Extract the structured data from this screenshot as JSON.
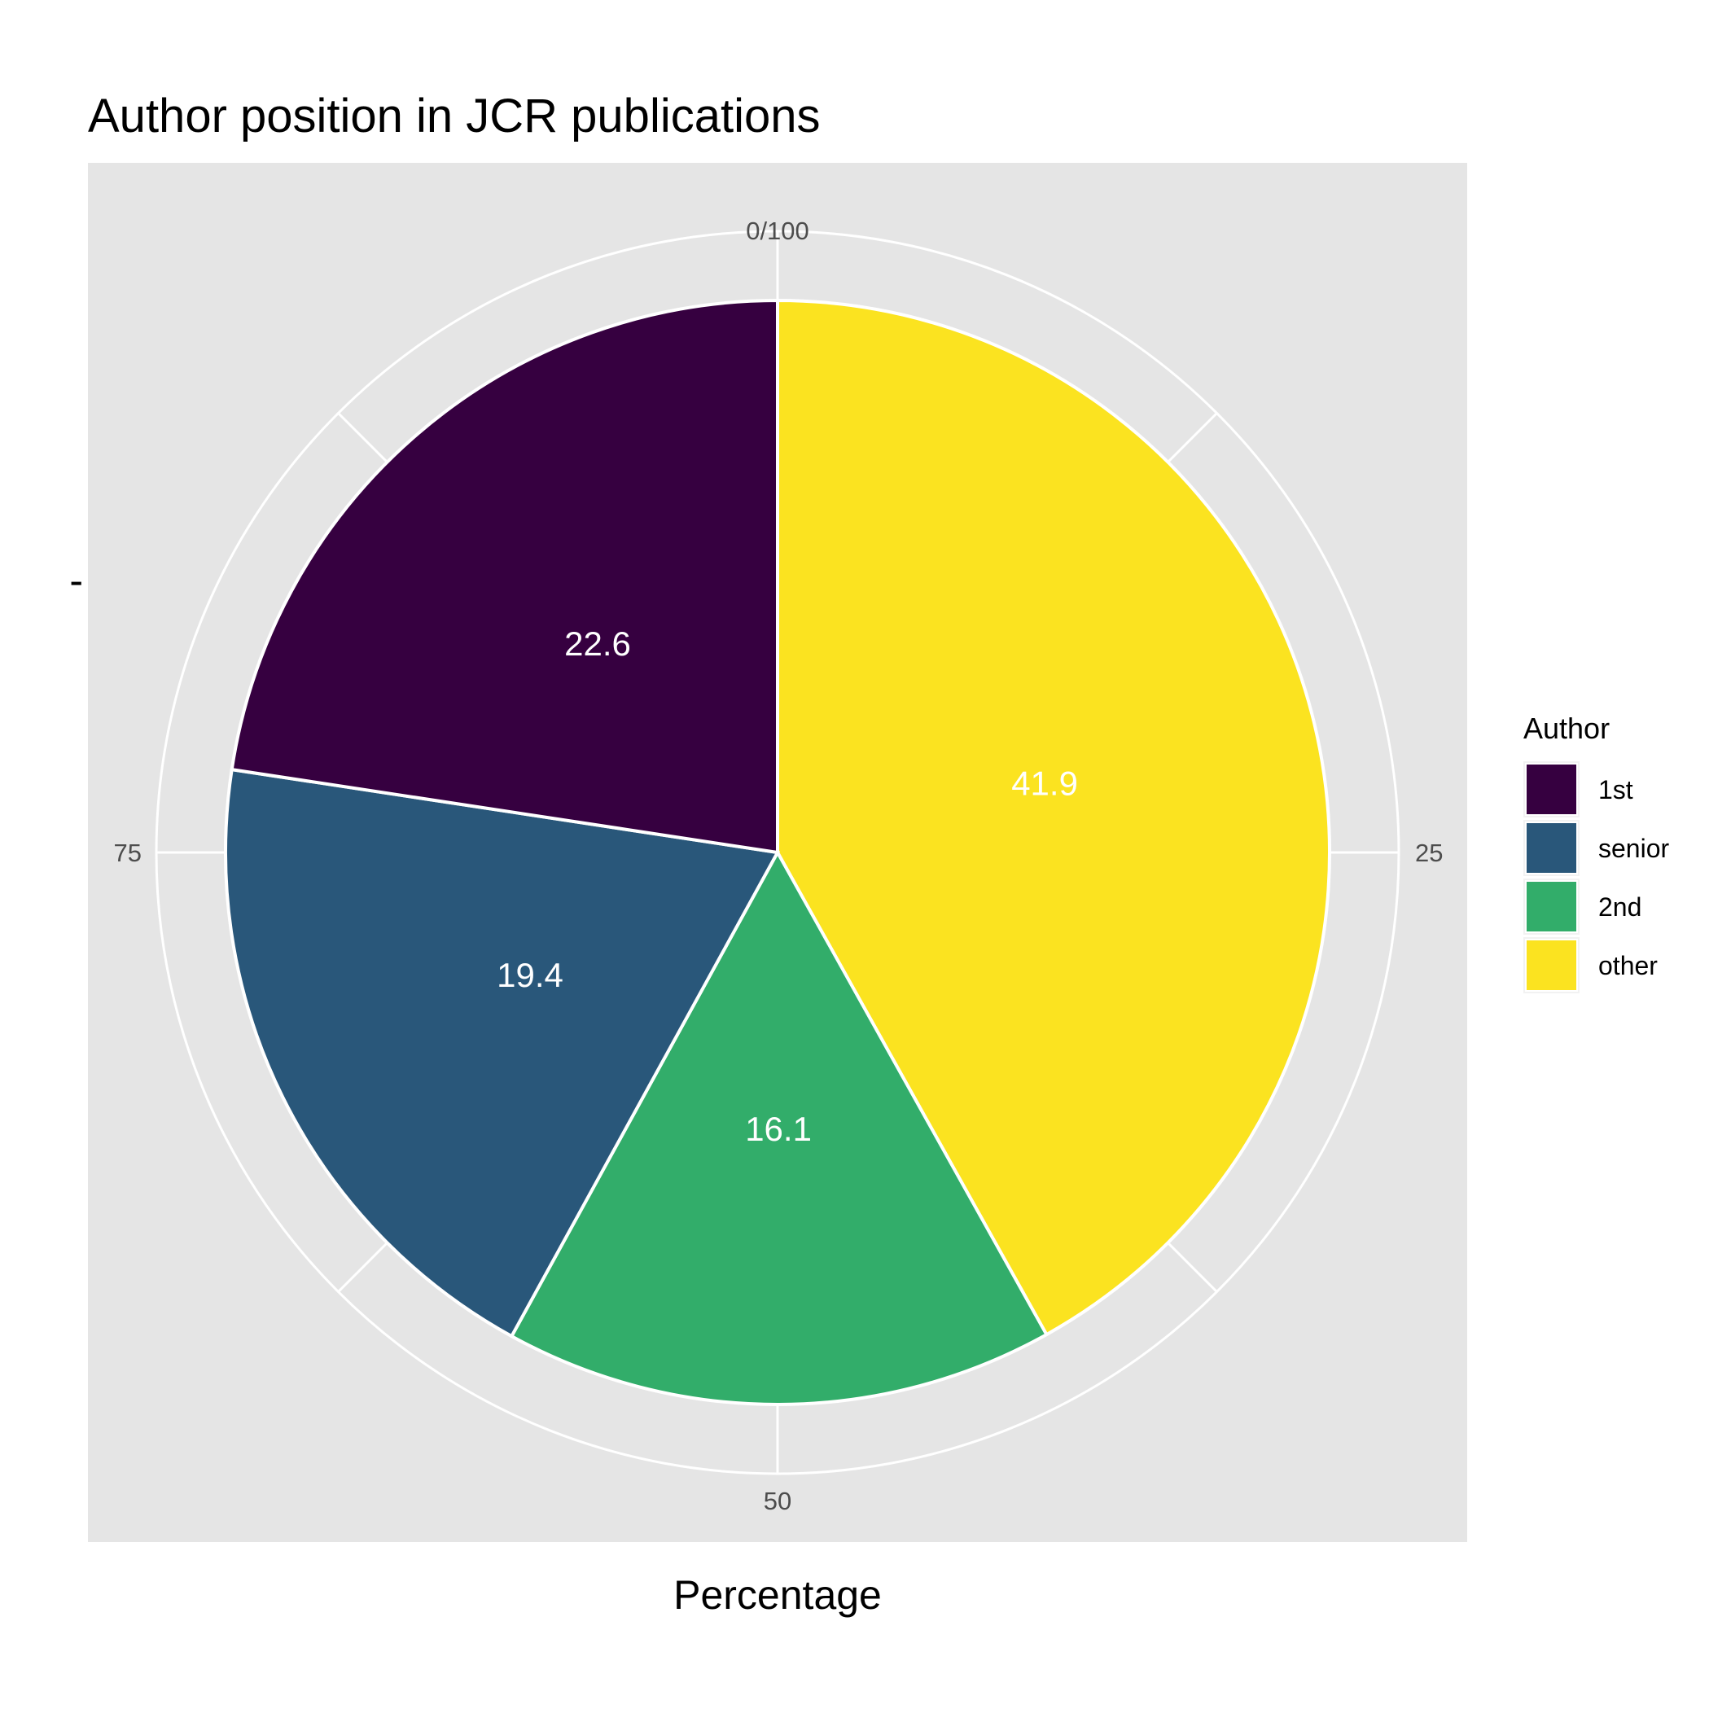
{
  "chart_data": {
    "type": "pie",
    "title": "Author position in JCR publications",
    "xlabel": "Percentage",
    "ylabel": "-",
    "theta_ticks": [
      "0/100",
      "25",
      "50",
      "75"
    ],
    "theta_range": [
      0,
      100
    ],
    "legend": {
      "title": "Author",
      "position": "right"
    },
    "categories": [
      "1st",
      "senior",
      "2nd",
      "other"
    ],
    "values": [
      22.6,
      19.4,
      16.1,
      41.9
    ],
    "labels": [
      "22.6",
      "19.4",
      "16.1",
      "41.9"
    ],
    "colors": [
      "#360040",
      "#29577a",
      "#32ad6a",
      "#fbe320"
    ],
    "slice_order": [
      "other",
      "2nd",
      "senior",
      "1st"
    ],
    "panel_background": "#e5e5e5",
    "grid": true
  }
}
